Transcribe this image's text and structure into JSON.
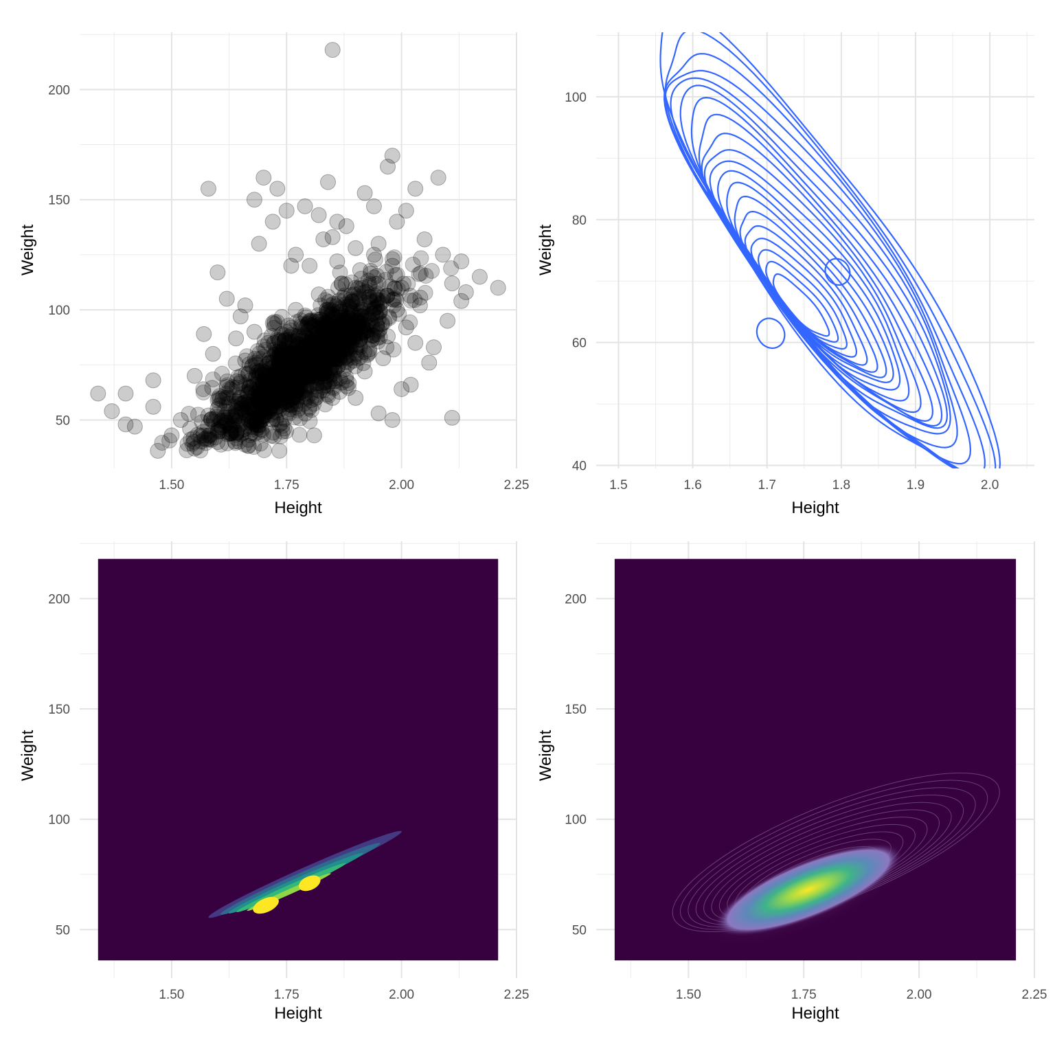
{
  "chart_data": [
    {
      "type": "scatter",
      "panel": "top-left",
      "xlabel": "Height",
      "ylabel": "Weight",
      "xlim": [
        1.3,
        2.25
      ],
      "ylim": [
        28,
        226
      ],
      "xticks": [
        {
          "value": 1.5,
          "label": "1.50"
        },
        {
          "value": 1.75,
          "label": "1.75"
        },
        {
          "value": 2.0,
          "label": "2.00"
        },
        {
          "value": 2.25,
          "label": "2.25"
        }
      ],
      "yticks": [
        {
          "value": 50,
          "label": "50"
        },
        {
          "value": 100,
          "label": "100"
        },
        {
          "value": 150,
          "label": "150"
        },
        {
          "value": 200,
          "label": "200"
        }
      ],
      "grid": true,
      "point_color": "#000000",
      "point_alpha": 0.2,
      "points": [
        [
          1.85,
          218
        ],
        [
          1.98,
          170
        ],
        [
          1.97,
          165
        ],
        [
          2.08,
          160
        ],
        [
          1.7,
          160
        ],
        [
          1.58,
          155
        ],
        [
          1.73,
          155
        ],
        [
          2.03,
          155
        ],
        [
          1.84,
          158
        ],
        [
          1.92,
          153
        ],
        [
          1.79,
          147
        ],
        [
          1.68,
          150
        ],
        [
          1.75,
          145
        ],
        [
          1.94,
          147
        ],
        [
          1.82,
          143
        ],
        [
          2.01,
          145
        ],
        [
          1.72,
          140
        ],
        [
          1.86,
          140
        ],
        [
          1.99,
          140
        ],
        [
          1.69,
          130
        ],
        [
          1.85,
          133
        ],
        [
          1.6,
          117
        ],
        [
          1.77,
          125
        ],
        [
          2.09,
          125
        ],
        [
          2.13,
          122
        ],
        [
          1.95,
          130
        ],
        [
          2.05,
          132
        ],
        [
          1.88,
          138
        ],
        [
          1.9,
          128
        ],
        [
          1.83,
          132
        ],
        [
          1.8,
          120
        ],
        [
          1.76,
          120
        ],
        [
          2.21,
          110
        ],
        [
          2.17,
          115
        ],
        [
          2.11,
          112
        ],
        [
          2.14,
          108
        ],
        [
          1.62,
          105
        ],
        [
          1.66,
          102
        ],
        [
          2.04,
          102
        ],
        [
          1.65,
          97
        ],
        [
          1.57,
          89
        ],
        [
          1.59,
          80
        ],
        [
          1.55,
          70
        ],
        [
          1.46,
          68
        ],
        [
          1.34,
          62
        ],
        [
          1.37,
          54
        ],
        [
          1.4,
          62
        ],
        [
          1.42,
          47
        ],
        [
          1.4,
          48
        ],
        [
          1.46,
          56
        ],
        [
          1.47,
          36
        ],
        [
          1.55,
          37
        ],
        [
          1.5,
          43
        ],
        [
          2.11,
          51
        ],
        [
          1.98,
          50
        ],
        [
          2.06,
          76
        ],
        [
          1.81,
          43
        ],
        [
          1.95,
          53
        ],
        [
          2.02,
          66
        ],
        [
          2.0,
          64
        ],
        [
          1.9,
          60
        ],
        [
          2.07,
          83
        ],
        [
          2.13,
          104
        ],
        [
          2.1,
          95
        ],
        [
          1.52,
          50
        ],
        [
          1.54,
          46
        ],
        [
          1.57,
          43
        ],
        [
          1.6,
          40
        ],
        [
          1.63,
          44
        ],
        [
          1.68,
          48
        ],
        [
          1.72,
          50
        ],
        [
          1.74,
          57
        ],
        [
          1.65,
          60
        ],
        [
          1.62,
          65
        ],
        [
          1.61,
          59
        ],
        [
          1.67,
          56
        ],
        [
          1.7,
          63
        ],
        [
          1.73,
          68
        ],
        [
          1.69,
          72
        ],
        [
          1.66,
          77
        ],
        [
          1.64,
          87
        ],
        [
          1.71,
          85
        ],
        [
          1.76,
          75
        ],
        [
          1.78,
          80
        ],
        [
          1.81,
          70
        ],
        [
          1.79,
          62
        ],
        [
          1.83,
          65
        ],
        [
          1.86,
          74
        ],
        [
          1.88,
          82
        ],
        [
          1.84,
          90
        ],
        [
          1.8,
          95
        ],
        [
          1.77,
          100
        ],
        [
          1.82,
          107
        ],
        [
          1.87,
          112
        ],
        [
          1.91,
          118
        ],
        [
          1.93,
          106
        ],
        [
          1.95,
          96
        ],
        [
          1.97,
          88
        ],
        [
          1.99,
          100
        ],
        [
          2.01,
          92
        ],
        [
          2.03,
          85
        ],
        [
          1.96,
          78
        ],
        [
          1.92,
          72
        ],
        [
          1.9,
          91
        ],
        [
          1.89,
          100
        ],
        [
          1.85,
          95
        ],
        [
          1.75,
          90
        ],
        [
          1.72,
          94
        ],
        [
          1.68,
          90
        ],
        [
          1.74,
          81
        ],
        [
          1.77,
          68
        ],
        [
          1.8,
          56
        ],
        [
          1.85,
          60
        ],
        [
          1.88,
          68
        ],
        [
          1.93,
          82
        ],
        [
          2.0,
          110
        ],
        [
          1.98,
          120
        ],
        [
          1.94,
          125
        ],
        [
          1.9,
          110
        ],
        [
          1.86,
          122
        ],
        [
          1.58,
          52
        ],
        [
          1.6,
          55
        ],
        [
          1.62,
          50
        ],
        [
          1.64,
          54
        ],
        [
          1.66,
          58
        ],
        [
          1.69,
          61
        ],
        [
          1.71,
          66
        ],
        [
          1.75,
          70
        ]
      ]
    },
    {
      "type": "contour",
      "panel": "top-right",
      "xlabel": "Height",
      "ylabel": "Weight",
      "xlim": [
        1.47,
        2.06
      ],
      "ylim": [
        39.5,
        110.5
      ],
      "xticks": [
        {
          "value": 1.5,
          "label": "1.5"
        },
        {
          "value": 1.6,
          "label": "1.6"
        },
        {
          "value": 1.7,
          "label": "1.7"
        },
        {
          "value": 1.8,
          "label": "1.8"
        },
        {
          "value": 1.9,
          "label": "1.9"
        },
        {
          "value": 2.0,
          "label": "2.0"
        }
      ],
      "yticks": [
        {
          "value": 40,
          "label": "40"
        },
        {
          "value": 60,
          "label": "60"
        },
        {
          "value": 80,
          "label": "80"
        },
        {
          "value": 100,
          "label": "100"
        }
      ],
      "grid": true,
      "line_color": "#3366FF",
      "levels": 20
    },
    {
      "type": "filled-density",
      "panel": "bottom-left",
      "xlabel": "Height",
      "ylabel": "Weight",
      "xlim": [
        1.3,
        2.25
      ],
      "ylim": [
        28,
        226
      ],
      "data_xrange": [
        1.34,
        2.21
      ],
      "data_yrange": [
        36,
        218
      ],
      "xticks": [
        {
          "value": 1.5,
          "label": "1.50"
        },
        {
          "value": 1.75,
          "label": "1.75"
        },
        {
          "value": 2.0,
          "label": "2.00"
        },
        {
          "value": 2.25,
          "label": "2.25"
        }
      ],
      "yticks": [
        {
          "value": 50,
          "label": "50"
        },
        {
          "value": 100,
          "label": "100"
        },
        {
          "value": 150,
          "label": "150"
        },
        {
          "value": 200,
          "label": "200"
        }
      ],
      "grid": true,
      "palette": [
        "#440154",
        "#443A83",
        "#31688E",
        "#21908C",
        "#35B779",
        "#8FD744",
        "#FDE725"
      ],
      "background_color": "#37003F"
    },
    {
      "type": "raster-density",
      "panel": "bottom-right",
      "xlabel": "Height",
      "ylabel": "Weight",
      "xlim": [
        1.3,
        2.25
      ],
      "ylim": [
        28,
        226
      ],
      "data_xrange": [
        1.34,
        2.21
      ],
      "data_yrange": [
        36,
        218
      ],
      "xticks": [
        {
          "value": 1.5,
          "label": "1.50"
        },
        {
          "value": 1.75,
          "label": "1.75"
        },
        {
          "value": 2.0,
          "label": "2.00"
        },
        {
          "value": 2.25,
          "label": "2.25"
        }
      ],
      "yticks": [
        {
          "value": 50,
          "label": "50"
        },
        {
          "value": 100,
          "label": "100"
        },
        {
          "value": 150,
          "label": "150"
        },
        {
          "value": 200,
          "label": "200"
        }
      ],
      "grid": true,
      "palette": [
        "#37003F",
        "#5B3C8C",
        "#3E7BA5",
        "#2BA28A",
        "#7CD66A",
        "#FDE725"
      ],
      "background_color": "#37003F"
    }
  ]
}
